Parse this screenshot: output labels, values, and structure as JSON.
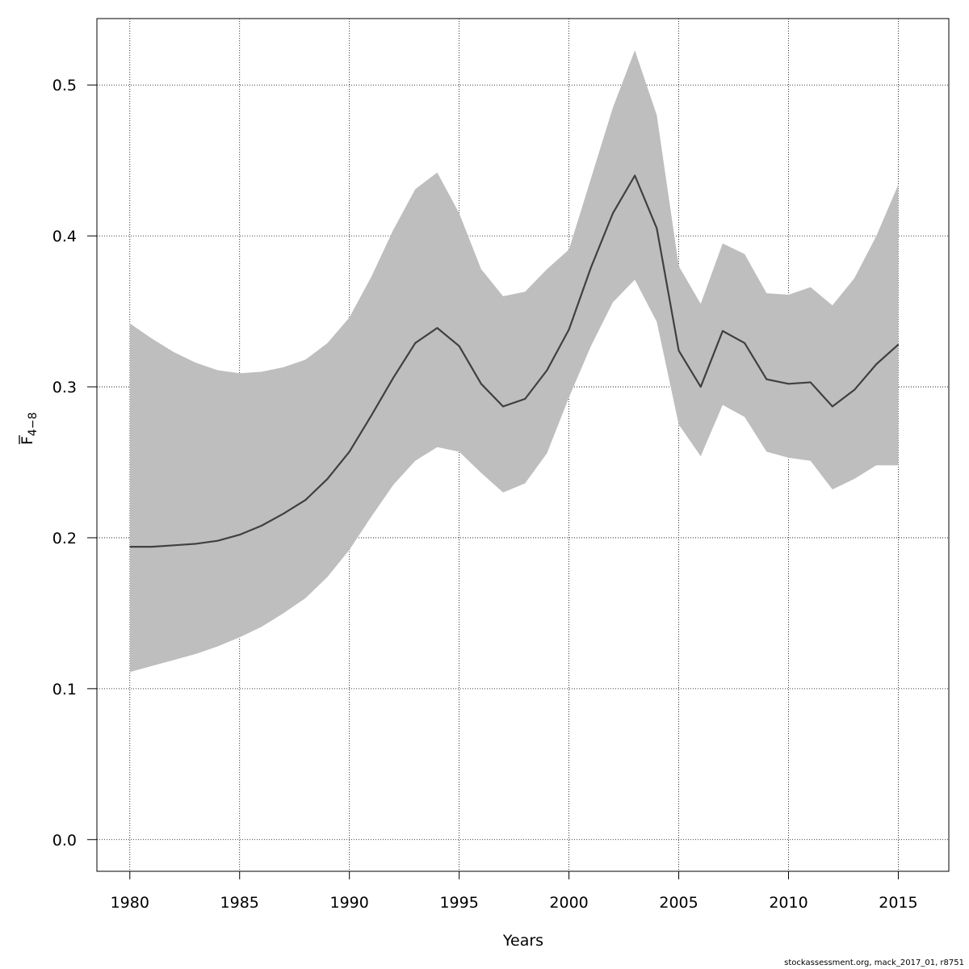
{
  "chart_data": {
    "type": "line",
    "title": "",
    "xlabel": "Years",
    "ylabel_main": "F",
    "ylabel_sub": "4−8",
    "xlim": [
      1978.5,
      2017.3
    ],
    "ylim": [
      -0.021,
      0.544
    ],
    "x_ticks": [
      1980,
      1985,
      1990,
      1995,
      2000,
      2005,
      2010,
      2015
    ],
    "y_ticks": [
      0.0,
      0.1,
      0.2,
      0.3,
      0.4,
      0.5
    ],
    "y_tick_labels": [
      "0.0",
      "0.1",
      "0.2",
      "0.3",
      "0.4",
      "0.5"
    ],
    "grid": true,
    "x": [
      1980,
      1981,
      1982,
      1983,
      1984,
      1985,
      1986,
      1987,
      1988,
      1989,
      1990,
      1991,
      1992,
      1993,
      1994,
      1995,
      1996,
      1997,
      1998,
      1999,
      2000,
      2001,
      2002,
      2003,
      2004,
      2005,
      2006,
      2007,
      2008,
      2009,
      2010,
      2011,
      2012,
      2013,
      2014,
      2015
    ],
    "series": [
      {
        "values": [
          0.194,
          0.194,
          0.195,
          0.196,
          0.198,
          0.202,
          0.208,
          0.216,
          0.225,
          0.239,
          0.257,
          0.281,
          0.306,
          0.329,
          0.339,
          0.327,
          0.302,
          0.287,
          0.292,
          0.311,
          0.338,
          0.379,
          0.415,
          0.44,
          0.405,
          0.324,
          0.3,
          0.337,
          0.329,
          0.305,
          0.302,
          0.303,
          0.287,
          0.298,
          0.315,
          0.328
        ],
        "color": "#404040"
      }
    ],
    "band": {
      "upper": [
        0.342,
        0.332,
        0.323,
        0.316,
        0.311,
        0.309,
        0.31,
        0.313,
        0.318,
        0.329,
        0.346,
        0.373,
        0.404,
        0.431,
        0.442,
        0.415,
        0.378,
        0.36,
        0.363,
        0.378,
        0.391,
        0.438,
        0.485,
        0.523,
        0.48,
        0.38,
        0.355,
        0.395,
        0.388,
        0.362,
        0.361,
        0.366,
        0.354,
        0.372,
        0.4,
        0.434
      ],
      "lower": [
        0.111,
        0.115,
        0.119,
        0.123,
        0.128,
        0.134,
        0.141,
        0.15,
        0.16,
        0.174,
        0.192,
        0.214,
        0.235,
        0.251,
        0.26,
        0.257,
        0.243,
        0.23,
        0.236,
        0.256,
        0.293,
        0.327,
        0.356,
        0.371,
        0.343,
        0.275,
        0.254,
        0.288,
        0.28,
        0.257,
        0.253,
        0.251,
        0.232,
        0.239,
        0.248,
        0.248
      ],
      "color": "#bebebe"
    }
  },
  "footer": {
    "credit": "stockassessment.org, mack_2017_01, r8751"
  }
}
